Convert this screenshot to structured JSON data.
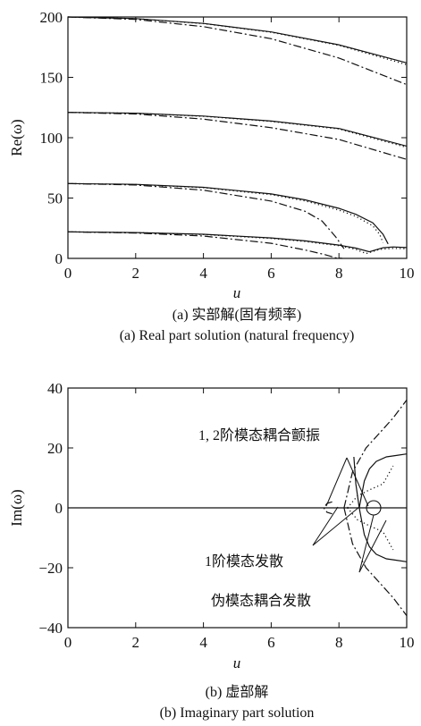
{
  "chart_data": [
    {
      "type": "line",
      "panel_caption_cn": "(a) 实部解(固有频率)",
      "panel_caption_en": "(a) Real part solution (natural frequency)",
      "xlabel": "u",
      "ylabel": "Re(ω)",
      "xlim": [
        0,
        10
      ],
      "ylim": [
        0,
        200
      ],
      "xticks": [
        0,
        2,
        4,
        6,
        8,
        10
      ],
      "yticks": [
        0,
        50,
        100,
        150,
        200
      ],
      "grid": false,
      "series": [
        {
          "style": "solid",
          "x": [
            0,
            2,
            4,
            6,
            8,
            10
          ],
          "y": [
            200,
            198.7,
            194.7,
            187.6,
            177,
            162
          ]
        },
        {
          "style": "dotted",
          "x": [
            0,
            2,
            4,
            6,
            8,
            10
          ],
          "y": [
            200,
            198.6,
            194.5,
            187.3,
            176.5,
            160.5
          ]
        },
        {
          "style": "dashdot",
          "x": [
            0,
            2,
            4,
            6,
            8,
            10
          ],
          "y": [
            200,
            198,
            192,
            182,
            166,
            144
          ]
        },
        {
          "style": "solid",
          "x": [
            0,
            2,
            4,
            6,
            8,
            10
          ],
          "y": [
            121,
            120.3,
            117.9,
            113.8,
            107.6,
            93
          ]
        },
        {
          "style": "dotted",
          "x": [
            0,
            2,
            4,
            6,
            8,
            10
          ],
          "y": [
            121,
            120.2,
            117.7,
            113.5,
            107.2,
            92
          ]
        },
        {
          "style": "dashdot",
          "x": [
            0,
            2,
            4,
            6,
            8,
            10
          ],
          "y": [
            121,
            119.6,
            115.4,
            108.3,
            98.5,
            82
          ]
        },
        {
          "style": "solid",
          "x": [
            0,
            2,
            4,
            6,
            7,
            8,
            8.5,
            9,
            9.3,
            9.45
          ],
          "y": [
            62,
            61.3,
            58.9,
            53.4,
            48.5,
            41.5,
            36.5,
            29.5,
            20,
            12
          ]
        },
        {
          "style": "dotted",
          "x": [
            0,
            2,
            4,
            6,
            7,
            8,
            8.5,
            9,
            9.2,
            9.3
          ],
          "y": [
            62,
            61.2,
            58.6,
            52.8,
            47.6,
            40,
            34.8,
            27,
            20,
            13
          ]
        },
        {
          "style": "dashdot",
          "x": [
            0,
            2,
            4,
            6,
            7,
            7.5,
            7.9,
            8.15
          ],
          "y": [
            62,
            60.8,
            56.5,
            47.5,
            39,
            31,
            18,
            8
          ]
        },
        {
          "style": "solid",
          "x": [
            0,
            2,
            4,
            6,
            7,
            8,
            8.5,
            8.9,
            9.3,
            9.6,
            10
          ],
          "y": [
            22,
            21.4,
            20,
            17,
            14.5,
            11,
            8.5,
            5.5,
            8.8,
            9.5,
            9
          ]
        },
        {
          "style": "dotted",
          "x": [
            0,
            2,
            4,
            6,
            7,
            8,
            8.5,
            8.8,
            9.2,
            9.6,
            10
          ],
          "y": [
            22,
            21.3,
            19.8,
            16.5,
            14,
            10.5,
            7.5,
            4,
            7.5,
            8.3,
            8
          ]
        },
        {
          "style": "dashdot",
          "x": [
            0,
            2,
            4,
            6,
            7,
            7.6,
            7.9,
            8.1
          ],
          "y": [
            22,
            21,
            18.5,
            12.5,
            7,
            3,
            0.5,
            0
          ]
        }
      ]
    },
    {
      "type": "line",
      "panel_caption_cn": "(b) 虚部解",
      "panel_caption_en": "(b) Imaginary part solution",
      "xlabel": "u",
      "ylabel": "Im(ω)",
      "xlim": [
        0,
        10
      ],
      "ylim": [
        -40,
        40
      ],
      "xticks": [
        0,
        2,
        4,
        6,
        8,
        10
      ],
      "yticks": [
        -40,
        -20,
        0,
        20,
        40
      ],
      "grid": false,
      "annotations": [
        {
          "text": "1, 2阶模态耦合颤振",
          "points_to": [
            8.4,
            2
          ]
        },
        {
          "text": "1阶模态发散",
          "points_to": [
            8.0,
            0
          ]
        },
        {
          "text": "伪模态耦合发散",
          "points_to": [
            8.9,
            0
          ]
        }
      ],
      "series": [
        {
          "style": "solid",
          "x": [
            0,
            10
          ],
          "y": [
            0,
            0
          ]
        },
        {
          "style": "solid",
          "x": [
            8.6,
            8.75,
            8.9,
            9.1,
            9.4,
            9.7,
            10
          ],
          "y": [
            0,
            9,
            13,
            15.5,
            17,
            17.5,
            18
          ]
        },
        {
          "style": "solid",
          "x": [
            8.6,
            8.75,
            8.9,
            9.1,
            9.4,
            9.7,
            10
          ],
          "y": [
            0,
            -9,
            -13,
            -15.5,
            -17,
            -17.5,
            -18
          ]
        },
        {
          "style": "solid",
          "x": [
            8.6,
            8.5,
            8.44
          ],
          "y": [
            0,
            8,
            17
          ]
        },
        {
          "style": "dashdot",
          "x": [
            8.15,
            8.4,
            8.8,
            9.2,
            9.6,
            10
          ],
          "y": [
            0,
            12,
            20,
            25,
            30,
            36
          ]
        },
        {
          "style": "dashdot",
          "x": [
            8.15,
            8.4,
            8.8,
            9.2,
            9.6,
            10
          ],
          "y": [
            0,
            -12,
            -20,
            -25,
            -30,
            -36
          ]
        },
        {
          "style": "dashdot",
          "x": [
            7.8,
            7.65,
            7.55,
            7.65,
            7.8
          ],
          "y": [
            2,
            1.5,
            0,
            -1.5,
            -2
          ]
        },
        {
          "style": "dotted",
          "x": [
            8.25,
            8.55,
            8.9,
            9.3,
            9.6
          ],
          "y": [
            0,
            4,
            6,
            8,
            14
          ]
        },
        {
          "style": "dotted",
          "x": [
            8.25,
            8.55,
            8.9,
            9.3,
            9.6
          ],
          "y": [
            0,
            -4,
            -6,
            -8,
            -14
          ]
        }
      ]
    }
  ]
}
